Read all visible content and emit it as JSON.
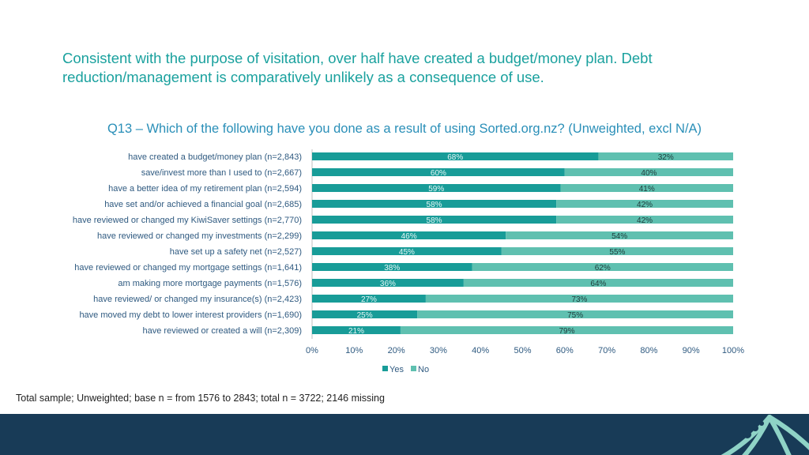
{
  "headline": "Consistent with the purpose of visitation, over half have created a budget/money plan. Debt reduction/management is comparatively unlikely as a consequence of use.",
  "footnote": "Total sample; Unweighted; base n = from 1576 to 2843; total n = 3722; 2146 missing",
  "colors": {
    "yes": "#189c98",
    "no": "#5fc0b0",
    "headline": "#1aa19e",
    "title": "#2a8fb8",
    "footer": "#183b57"
  },
  "chart_data": {
    "type": "bar",
    "orientation": "horizontal",
    "stacked": true,
    "title": "Q13 – Which of the following have you done as a result of using Sorted.org.nz? (Unweighted, excl N/A)",
    "categories": [
      "have created a budget/money plan (n=2,843)",
      "save/invest more than I used to (n=2,667)",
      "have a better idea of my retirement plan (n=2,594)",
      "have set and/or achieved a financial goal (n=2,685)",
      "have reviewed or changed my KiwiSaver settings (n=2,770)",
      "have reviewed or changed my investments (n=2,299)",
      "have set up a safety net (n=2,527)",
      "have reviewed or changed my mortgage settings (n=1,641)",
      "am making more mortgage payments (n=1,576)",
      "have reviewed/ or changed my insurance(s) (n=2,423)",
      "have moved my debt to lower interest providers (n=1,690)",
      "have reviewed or created a will (n=2,309)"
    ],
    "series": [
      {
        "name": "Yes",
        "values": [
          68,
          60,
          59,
          58,
          58,
          46,
          45,
          38,
          36,
          27,
          25,
          21
        ],
        "labels": [
          "68%",
          "60%",
          "59%",
          "58%",
          "58%",
          "46%",
          "45%",
          "38%",
          "36%",
          "27%",
          "25%",
          "21%"
        ]
      },
      {
        "name": "No",
        "values": [
          32,
          40,
          41,
          42,
          42,
          54,
          55,
          62,
          64,
          73,
          75,
          79
        ],
        "labels": [
          "32%",
          "40%",
          "41%",
          "42%",
          "42%",
          "54%",
          "55%",
          "62%",
          "64%",
          "73%",
          "75%",
          "79%"
        ]
      }
    ],
    "xlim": [
      0,
      100
    ],
    "xticks": [
      "0%",
      "10%",
      "20%",
      "30%",
      "40%",
      "50%",
      "60%",
      "70%",
      "80%",
      "90%",
      "100%"
    ],
    "legend": {
      "position": "bottom",
      "entries": [
        "Yes",
        "No"
      ]
    }
  }
}
